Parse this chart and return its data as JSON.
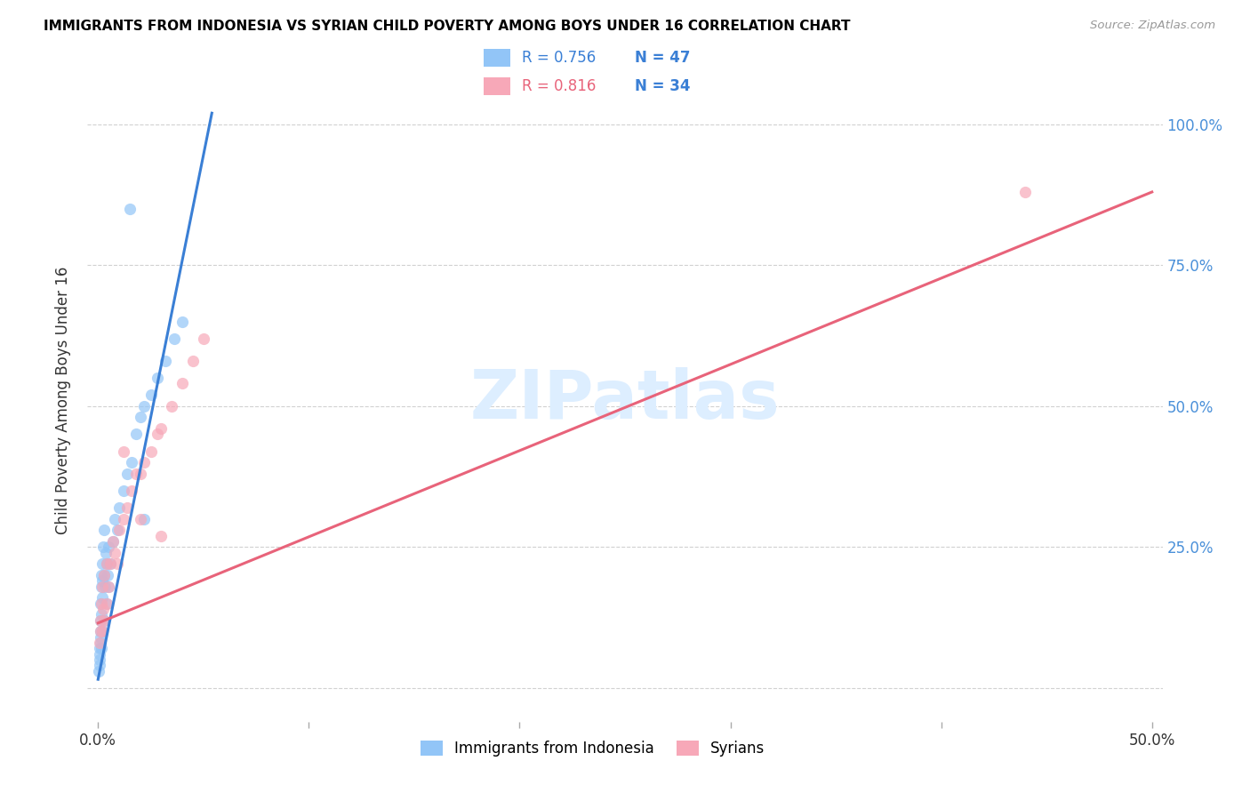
{
  "title": "IMMIGRANTS FROM INDONESIA VS SYRIAN CHILD POVERTY AMONG BOYS UNDER 16 CORRELATION CHART",
  "source": "Source: ZipAtlas.com",
  "ylabel": "Child Poverty Among Boys Under 16",
  "legend_label1": "Immigrants from Indonesia",
  "legend_label2": "Syrians",
  "R1": "0.756",
  "N1": "47",
  "R2": "0.816",
  "N2": "34",
  "color_blue_scatter": "#92c5f7",
  "color_blue_line": "#3a7fd5",
  "color_pink_scatter": "#f7a8b8",
  "color_pink_line": "#e8637a",
  "color_blue_text": "#3a7fd5",
  "color_pink_text": "#e8637a",
  "color_n_text": "#3a7fd5",
  "watermark_color": "#ddeeff",
  "right_tick_color": "#4a90d9",
  "xlim": [
    -0.005,
    0.505
  ],
  "ylim": [
    -0.06,
    1.08
  ],
  "x_tick_vals": [
    0.0,
    0.1,
    0.2,
    0.3,
    0.4,
    0.5
  ],
  "x_tick_labels": [
    "0.0%",
    "",
    "",
    "",
    "",
    "50.0%"
  ],
  "y_tick_vals": [
    0.0,
    0.25,
    0.5,
    0.75,
    1.0
  ],
  "y_tick_labels": [
    "",
    "25.0%",
    "50.0%",
    "75.0%",
    "100.0%"
  ],
  "trend_blue_x0": 0.0,
  "trend_blue_y0": 0.015,
  "trend_blue_x1": 0.054,
  "trend_blue_y1": 1.02,
  "trend_pink_x0": 0.0,
  "trend_pink_y0": 0.115,
  "trend_pink_x1": 0.5,
  "trend_pink_y1": 0.88,
  "scatter1_x": [
    0.0005,
    0.0006,
    0.0007,
    0.0008,
    0.0009,
    0.001,
    0.001,
    0.001,
    0.0012,
    0.0013,
    0.0015,
    0.0015,
    0.0016,
    0.0017,
    0.002,
    0.002,
    0.002,
    0.0022,
    0.0025,
    0.003,
    0.003,
    0.003,
    0.0032,
    0.0035,
    0.004,
    0.004,
    0.0045,
    0.005,
    0.005,
    0.006,
    0.007,
    0.008,
    0.009,
    0.01,
    0.012,
    0.014,
    0.016,
    0.018,
    0.02,
    0.022,
    0.025,
    0.028,
    0.032,
    0.036,
    0.04,
    0.022,
    0.015
  ],
  "scatter1_y": [
    0.03,
    0.05,
    0.04,
    0.07,
    0.06,
    0.08,
    0.1,
    0.15,
    0.09,
    0.12,
    0.07,
    0.18,
    0.13,
    0.2,
    0.1,
    0.16,
    0.22,
    0.19,
    0.25,
    0.12,
    0.2,
    0.28,
    0.18,
    0.24,
    0.15,
    0.22,
    0.2,
    0.18,
    0.25,
    0.22,
    0.26,
    0.3,
    0.28,
    0.32,
    0.35,
    0.38,
    0.4,
    0.45,
    0.48,
    0.5,
    0.52,
    0.55,
    0.58,
    0.62,
    0.65,
    0.3,
    0.85
  ],
  "scatter2_x": [
    0.0008,
    0.001,
    0.0012,
    0.0015,
    0.002,
    0.002,
    0.0025,
    0.003,
    0.003,
    0.004,
    0.004,
    0.005,
    0.006,
    0.007,
    0.008,
    0.009,
    0.01,
    0.012,
    0.014,
    0.016,
    0.018,
    0.02,
    0.022,
    0.025,
    0.028,
    0.03,
    0.035,
    0.04,
    0.045,
    0.05,
    0.012,
    0.02,
    0.03,
    0.44
  ],
  "scatter2_y": [
    0.08,
    0.1,
    0.12,
    0.15,
    0.1,
    0.18,
    0.14,
    0.12,
    0.2,
    0.15,
    0.22,
    0.18,
    0.22,
    0.26,
    0.24,
    0.22,
    0.28,
    0.3,
    0.32,
    0.35,
    0.38,
    0.38,
    0.4,
    0.42,
    0.45,
    0.46,
    0.5,
    0.54,
    0.58,
    0.62,
    0.42,
    0.3,
    0.27,
    0.88
  ]
}
